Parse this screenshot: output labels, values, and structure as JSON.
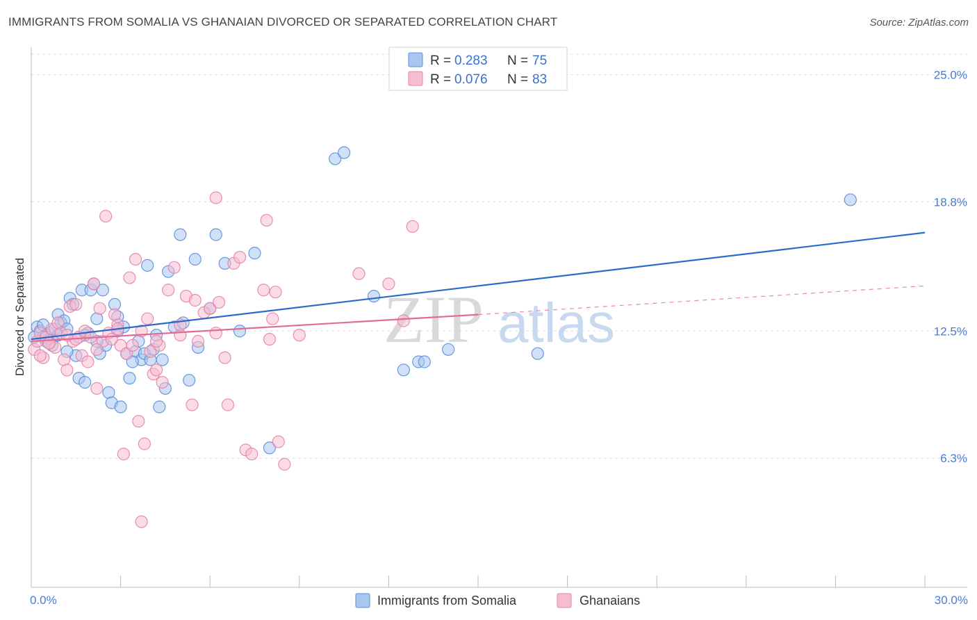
{
  "title": "IMMIGRANTS FROM SOMALIA VS GHANAIAN DIVORCED OR SEPARATED CORRELATION CHART",
  "source": "Source: ZipAtlas.com",
  "watermark": {
    "zip": "ZIP",
    "atlas": "atlas"
  },
  "legend_box": {
    "r_label": "R =",
    "n_label": "N =",
    "rows": [
      {
        "r": "0.283",
        "n": "75"
      },
      {
        "r": "0.076",
        "n": "83"
      }
    ]
  },
  "colors": {
    "series1_fill": "#a9c6f0",
    "series1_stroke": "#5b8ed8",
    "series1_line": "#2a6ac8",
    "series2_fill": "#f6bdd2",
    "series2_stroke": "#e582a8",
    "series2_line": "#e06b99",
    "grid": "#dcdcdc",
    "tick_label": "#4a7bd0"
  },
  "chart_data": {
    "type": "scatter",
    "title": "IMMIGRANTS FROM SOMALIA VS GHANAIAN DIVORCED OR SEPARATED CORRELATION CHART",
    "xlabel": "",
    "ylabel": "Divorced or Separated",
    "xlim": [
      0,
      30
    ],
    "ylim": [
      0,
      26
    ],
    "x_tick_labels": [
      {
        "value": 0,
        "label": "0.0%"
      },
      {
        "value": 30,
        "label": "30.0%"
      }
    ],
    "y_tick_labels": [
      {
        "value": 6.3,
        "label": "6.3%"
      },
      {
        "value": 12.5,
        "label": "12.5%"
      },
      {
        "value": 18.8,
        "label": "18.8%"
      },
      {
        "value": 25.0,
        "label": "25.0%"
      }
    ],
    "grid": true,
    "legend_placement": "bottom",
    "series": [
      {
        "name": "Immigrants from Somalia",
        "trend": {
          "x": [
            0,
            30
          ],
          "y": [
            12.1,
            17.3
          ],
          "dashed_to": null
        },
        "points": [
          [
            0.2,
            12.7
          ],
          [
            0.3,
            12.5
          ],
          [
            0.4,
            12.8
          ],
          [
            0.5,
            12.3
          ],
          [
            0.6,
            12.4
          ],
          [
            0.7,
            12.1
          ],
          [
            0.8,
            12.6
          ],
          [
            0.9,
            13.3
          ],
          [
            1.0,
            12.9
          ],
          [
            1.1,
            13.0
          ],
          [
            1.2,
            12.6
          ],
          [
            1.3,
            14.1
          ],
          [
            1.4,
            13.8
          ],
          [
            1.5,
            11.3
          ],
          [
            1.6,
            10.2
          ],
          [
            1.7,
            14.5
          ],
          [
            1.8,
            10.0
          ],
          [
            1.9,
            12.4
          ],
          [
            2.0,
            14.5
          ],
          [
            2.1,
            14.8
          ],
          [
            2.2,
            13.1
          ],
          [
            2.3,
            11.4
          ],
          [
            2.4,
            14.5
          ],
          [
            2.5,
            11.8
          ],
          [
            2.6,
            9.5
          ],
          [
            2.7,
            9.0
          ],
          [
            2.8,
            13.8
          ],
          [
            2.9,
            13.2
          ],
          [
            3.0,
            8.8
          ],
          [
            3.1,
            12.7
          ],
          [
            3.2,
            11.4
          ],
          [
            3.3,
            10.2
          ],
          [
            3.5,
            11.5
          ],
          [
            3.6,
            12.0
          ],
          [
            3.7,
            11.1
          ],
          [
            3.8,
            11.4
          ],
          [
            3.9,
            15.7
          ],
          [
            4.0,
            11.1
          ],
          [
            4.1,
            11.6
          ],
          [
            4.2,
            12.3
          ],
          [
            4.4,
            11.1
          ],
          [
            4.5,
            9.7
          ],
          [
            4.6,
            15.4
          ],
          [
            4.8,
            12.7
          ],
          [
            5.0,
            17.2
          ],
          [
            5.1,
            12.9
          ],
          [
            5.3,
            10.1
          ],
          [
            5.5,
            16.0
          ],
          [
            5.6,
            11.7
          ],
          [
            6.0,
            13.6
          ],
          [
            6.2,
            17.2
          ],
          [
            6.5,
            15.8
          ],
          [
            7.0,
            12.5
          ],
          [
            7.5,
            16.3
          ],
          [
            8.0,
            6.8
          ],
          [
            10.2,
            20.9
          ],
          [
            10.5,
            21.2
          ],
          [
            11.5,
            14.2
          ],
          [
            12.5,
            10.6
          ],
          [
            13.0,
            11.0
          ],
          [
            13.2,
            11.0
          ],
          [
            14.0,
            11.6
          ],
          [
            17.0,
            11.4
          ],
          [
            27.5,
            18.9
          ],
          [
            4.3,
            8.8
          ],
          [
            0.1,
            12.2
          ],
          [
            0.5,
            12.0
          ],
          [
            0.9,
            12.3
          ],
          [
            1.2,
            11.5
          ],
          [
            1.8,
            12.3
          ],
          [
            2.2,
            12.0
          ],
          [
            0.4,
            12.2
          ],
          [
            0.7,
            11.8
          ],
          [
            2.9,
            12.5
          ],
          [
            3.4,
            11.0
          ]
        ]
      },
      {
        "name": "Ghanaians",
        "trend": {
          "x": [
            0,
            15
          ],
          "y": [
            12.0,
            13.3
          ],
          "dashed_to": [
            30,
            14.7
          ]
        },
        "points": [
          [
            0.1,
            11.6
          ],
          [
            0.2,
            12.0
          ],
          [
            0.3,
            12.4
          ],
          [
            0.4,
            11.2
          ],
          [
            0.5,
            12.2
          ],
          [
            0.6,
            11.9
          ],
          [
            0.7,
            12.6
          ],
          [
            0.8,
            11.7
          ],
          [
            0.9,
            12.9
          ],
          [
            1.0,
            12.4
          ],
          [
            1.1,
            11.1
          ],
          [
            1.2,
            10.6
          ],
          [
            1.3,
            13.7
          ],
          [
            1.4,
            12.0
          ],
          [
            1.5,
            13.8
          ],
          [
            1.6,
            12.2
          ],
          [
            1.7,
            11.3
          ],
          [
            1.8,
            12.5
          ],
          [
            1.9,
            11.0
          ],
          [
            2.0,
            12.2
          ],
          [
            2.1,
            14.8
          ],
          [
            2.2,
            9.7
          ],
          [
            2.3,
            13.6
          ],
          [
            2.4,
            12.0
          ],
          [
            2.5,
            18.1
          ],
          [
            2.6,
            12.4
          ],
          [
            2.7,
            12.1
          ],
          [
            2.8,
            13.3
          ],
          [
            2.9,
            12.8
          ],
          [
            3.0,
            11.8
          ],
          [
            3.1,
            6.5
          ],
          [
            3.2,
            11.4
          ],
          [
            3.3,
            15.1
          ],
          [
            3.4,
            11.8
          ],
          [
            3.5,
            16.0
          ],
          [
            3.6,
            8.1
          ],
          [
            3.7,
            3.2
          ],
          [
            3.8,
            7.0
          ],
          [
            3.9,
            13.1
          ],
          [
            4.0,
            11.5
          ],
          [
            4.1,
            10.4
          ],
          [
            4.2,
            10.6
          ],
          [
            4.3,
            11.8
          ],
          [
            4.4,
            10.0
          ],
          [
            4.6,
            14.5
          ],
          [
            4.8,
            15.6
          ],
          [
            5.0,
            12.3
          ],
          [
            5.2,
            14.2
          ],
          [
            5.4,
            8.9
          ],
          [
            5.5,
            14.0
          ],
          [
            5.6,
            12.0
          ],
          [
            5.8,
            13.4
          ],
          [
            6.0,
            13.6
          ],
          [
            6.2,
            19.0
          ],
          [
            6.3,
            13.9
          ],
          [
            6.5,
            11.2
          ],
          [
            6.6,
            8.9
          ],
          [
            6.8,
            15.8
          ],
          [
            7.0,
            16.1
          ],
          [
            7.2,
            6.7
          ],
          [
            7.4,
            6.5
          ],
          [
            7.8,
            14.5
          ],
          [
            7.9,
            17.9
          ],
          [
            8.0,
            12.1
          ],
          [
            8.1,
            13.1
          ],
          [
            8.2,
            14.4
          ],
          [
            8.3,
            7.1
          ],
          [
            8.5,
            6.0
          ],
          [
            11.0,
            15.3
          ],
          [
            12.0,
            14.8
          ],
          [
            12.5,
            13.0
          ],
          [
            12.8,
            17.6
          ],
          [
            1.5,
            12.1
          ],
          [
            2.9,
            12.6
          ],
          [
            0.3,
            11.3
          ],
          [
            0.6,
            11.9
          ],
          [
            1.2,
            12.3
          ],
          [
            4.2,
            12.0
          ],
          [
            5.0,
            12.8
          ],
          [
            6.2,
            12.4
          ],
          [
            2.2,
            11.6
          ],
          [
            3.7,
            12.5
          ],
          [
            9.0,
            12.3
          ]
        ]
      }
    ]
  },
  "bottom_legend": [
    {
      "label": "Immigrants from Somalia"
    },
    {
      "label": "Ghanaians"
    }
  ]
}
